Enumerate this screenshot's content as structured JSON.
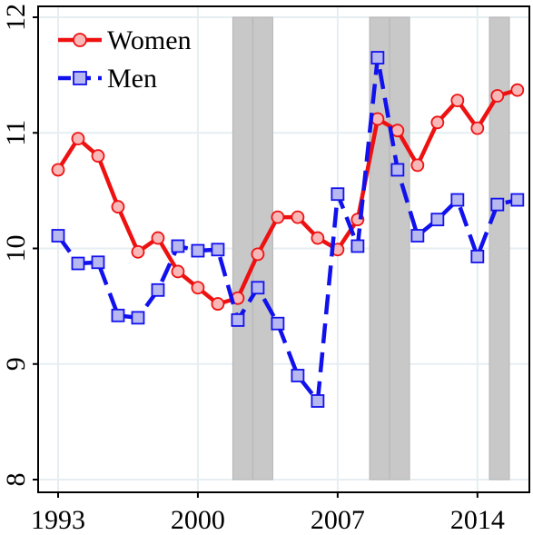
{
  "chart_data": {
    "type": "line",
    "title": "",
    "xlabel": "",
    "ylabel": "",
    "xlim": [
      1992,
      2016.6
    ],
    "ylim": [
      8,
      12
    ],
    "x_ticks": [
      1993,
      2000,
      2007,
      2014
    ],
    "y_ticks": [
      8,
      9,
      10,
      11,
      12
    ],
    "grid": true,
    "legend_position": "top-left",
    "shaded_periods": [
      [
        2001.75,
        2002.75
      ],
      [
        2002.75,
        2003.75
      ],
      [
        2008.6,
        2009.6
      ],
      [
        2009.6,
        2010.6
      ],
      [
        2014.6,
        2015.6
      ]
    ],
    "series": [
      {
        "name": "Women",
        "color": "#ee1111",
        "marker_fill": "#f8b8b8",
        "marker": "circle",
        "dashed": false,
        "x": [
          1993,
          1994,
          1995,
          1996,
          1997,
          1998,
          1999,
          2000,
          2001,
          2002,
          2003,
          2004,
          2005,
          2006,
          2007,
          2008,
          2009,
          2010,
          2011,
          2012,
          2013,
          2014,
          2015,
          2016
        ],
        "values": [
          10.68,
          10.95,
          10.8,
          10.36,
          9.97,
          10.09,
          9.8,
          9.66,
          9.52,
          9.57,
          9.95,
          10.27,
          10.27,
          10.09,
          9.99,
          10.25,
          11.12,
          11.02,
          10.72,
          11.09,
          11.28,
          11.04,
          11.32,
          11.37
        ]
      },
      {
        "name": "Men",
        "color": "#1111ee",
        "marker_fill": "#b8b8f0",
        "marker": "square",
        "dashed": true,
        "x": [
          1993,
          1994,
          1995,
          1996,
          1997,
          1998,
          1999,
          2000,
          2001,
          2002,
          2003,
          2004,
          2005,
          2006,
          2007,
          2008,
          2009,
          2010,
          2011,
          2012,
          2013,
          2014,
          2015,
          2016
        ],
        "values": [
          10.11,
          9.87,
          9.88,
          9.42,
          9.4,
          9.64,
          10.02,
          9.98,
          9.99,
          9.38,
          9.66,
          9.35,
          8.9,
          8.68,
          10.47,
          10.02,
          11.65,
          10.68,
          10.11,
          10.25,
          10.42,
          9.93,
          10.38,
          10.42
        ]
      }
    ]
  }
}
